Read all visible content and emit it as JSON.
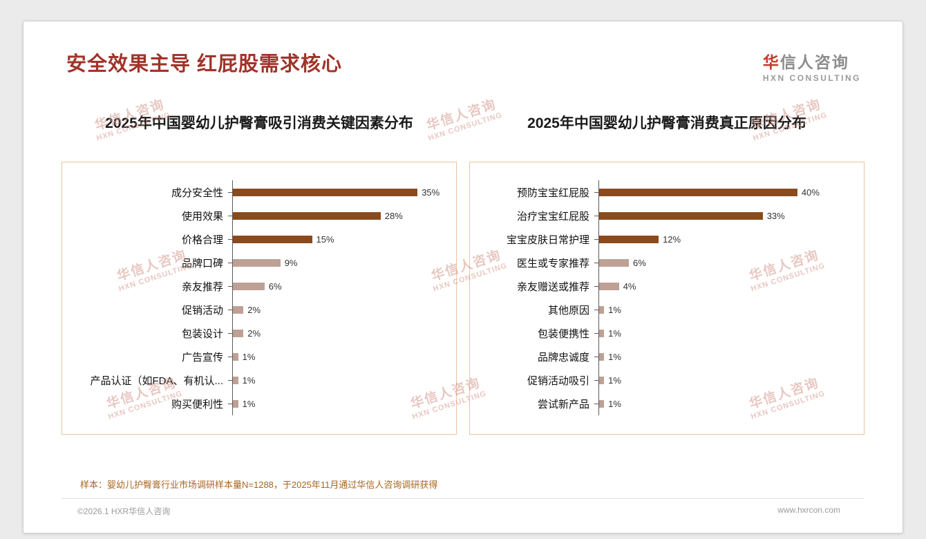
{
  "header": {
    "title": "安全效果主导 红屁股需求核心",
    "logo": {
      "accent": "华",
      "rest": "信人咨询",
      "subtitle": "HXN CONSULTING"
    }
  },
  "watermark": {
    "line1": "华信人咨询",
    "line2": "HXN CONSULTING"
  },
  "chart_data": [
    {
      "type": "bar",
      "orientation": "horizontal",
      "title": "2025年中国婴幼儿护臀膏吸引消费关键因素分布",
      "categories": [
        "成分安全性",
        "使用效果",
        "价格合理",
        "品牌口碑",
        "亲友推荐",
        "促销活动",
        "包装设计",
        "广告宣传",
        "产品认证（如FDA、有机认...",
        "购买便利性"
      ],
      "values": [
        35,
        28,
        15,
        9,
        6,
        2,
        2,
        1,
        1,
        1
      ],
      "value_labels": [
        "35%",
        "28%",
        "15%",
        "9%",
        "6%",
        "2%",
        "2%",
        "1%",
        "1%",
        "1%"
      ],
      "xlim": [
        0,
        41
      ],
      "grid": false,
      "legend": false,
      "palette": {
        "high": "#8B4A1C",
        "low": "#BEA094"
      },
      "color_keys": [
        "high",
        "high",
        "high",
        "low",
        "low",
        "low",
        "low",
        "low",
        "low",
        "low"
      ]
    },
    {
      "type": "bar",
      "orientation": "horizontal",
      "title": "2025年中国婴幼儿护臀膏消费真正原因分布",
      "categories": [
        "预防宝宝红屁股",
        "治疗宝宝红屁股",
        "宝宝皮肤日常护理",
        "医生或专家推荐",
        "亲友赠送或推荐",
        "其他原因",
        "包装便携性",
        "品牌忠诚度",
        "促销活动吸引",
        "尝试新产品"
      ],
      "values": [
        40,
        33,
        12,
        6,
        4,
        1,
        1,
        1,
        1,
        1
      ],
      "value_labels": [
        "40%",
        "33%",
        "12%",
        "6%",
        "4%",
        "1%",
        "1%",
        "1%",
        "1%",
        "1%"
      ],
      "xlim": [
        0,
        52
      ],
      "grid": false,
      "legend": false,
      "palette": {
        "high": "#8B4A1C",
        "low": "#BEA094"
      },
      "color_keys": [
        "high",
        "high",
        "high",
        "low",
        "low",
        "low",
        "low",
        "low",
        "low",
        "low"
      ]
    }
  ],
  "footer": {
    "note": "样本：婴幼儿护臀膏行业市场调研样本量N=1288，于2025年11月通过华信人咨询调研获得",
    "copyright": "©2026.1 HXR华信人咨询",
    "website": "www.hxrcon.com"
  },
  "colors": {
    "title": "#A0342A",
    "bar_high": "#8B4A1C",
    "bar_low": "#BEA094",
    "note": "#A8651E",
    "box_border": "#ECC49C"
  }
}
